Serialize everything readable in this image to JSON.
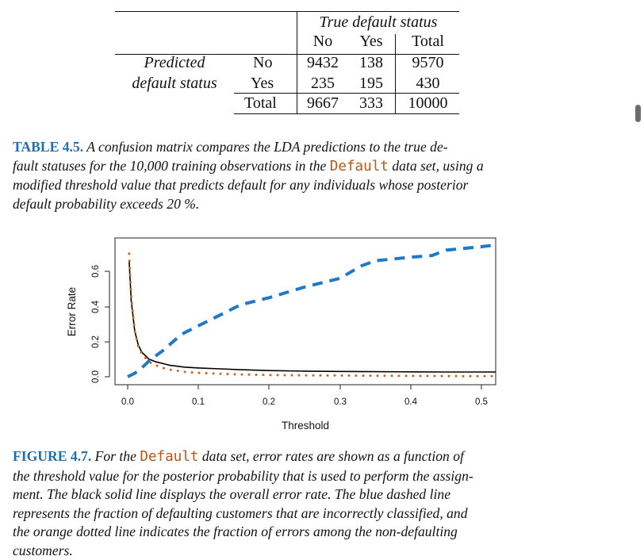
{
  "confusion_table": {
    "header_group": "True default status",
    "col_headers": [
      "No",
      "Yes",
      "Total"
    ],
    "row_group_line1": "Predicted",
    "row_group_line2": "default status",
    "rows": [
      {
        "label": "No",
        "values": [
          "9432",
          "138",
          "9570"
        ]
      },
      {
        "label": "Yes",
        "values": [
          "235",
          "195",
          "430"
        ]
      },
      {
        "label": "Total",
        "values": [
          "9667",
          "333",
          "10000"
        ]
      }
    ]
  },
  "table_caption": {
    "label": "TABLE 4.5.",
    "text_a": " A confusion matrix compares the LDA predictions to the true de-",
    "text_b": "fault statuses for the 10,000 training observations in the ",
    "code": "Default",
    "text_c": " data set, using a",
    "text_d": "modified threshold value that predicts default for any individuals whose posterior",
    "text_e": "default probability exceeds 20 %."
  },
  "chart_data": {
    "type": "line",
    "xlabel": "Threshold",
    "ylabel": "Error Rate",
    "xlim": [
      0,
      0.5
    ],
    "ylim": [
      0,
      0.7
    ],
    "x_ticks": [
      "0.0",
      "0.1",
      "0.2",
      "0.3",
      "0.4",
      "0.5"
    ],
    "y_ticks": [
      "0.0",
      "0.2",
      "0.4",
      "0.6"
    ],
    "grid": false,
    "series": [
      {
        "style": "solid",
        "color": "#000000",
        "x": [
          0.002,
          0.005,
          0.01,
          0.015,
          0.02,
          0.03,
          0.04,
          0.05,
          0.06,
          0.08,
          0.1,
          0.13,
          0.16,
          0.2,
          0.25,
          0.3,
          0.35,
          0.4,
          0.45,
          0.5,
          0.52
        ],
        "y": [
          0.66,
          0.43,
          0.26,
          0.18,
          0.14,
          0.1,
          0.085,
          0.075,
          0.065,
          0.055,
          0.05,
          0.045,
          0.04,
          0.035,
          0.032,
          0.03,
          0.029,
          0.028,
          0.027,
          0.027,
          0.027
        ]
      },
      {
        "style": "dashed",
        "color": "#1f78c8",
        "x": [
          0.0,
          0.01,
          0.02,
          0.03,
          0.05,
          0.07,
          0.08,
          0.1,
          0.13,
          0.16,
          0.2,
          0.25,
          0.3,
          0.33,
          0.35,
          0.4,
          0.43,
          0.45,
          0.5,
          0.52
        ],
        "y": [
          0.0,
          0.02,
          0.05,
          0.09,
          0.15,
          0.22,
          0.25,
          0.29,
          0.35,
          0.41,
          0.45,
          0.51,
          0.56,
          0.63,
          0.66,
          0.68,
          0.69,
          0.72,
          0.74,
          0.75
        ]
      },
      {
        "style": "dotted",
        "color": "#c8691d",
        "x": [
          0.002,
          0.005,
          0.01,
          0.015,
          0.02,
          0.03,
          0.04,
          0.05,
          0.06,
          0.08,
          0.1,
          0.13,
          0.16,
          0.2,
          0.25,
          0.3,
          0.35,
          0.4,
          0.45,
          0.5,
          0.52
        ],
        "y": [
          0.7,
          0.45,
          0.26,
          0.17,
          0.13,
          0.085,
          0.065,
          0.05,
          0.04,
          0.028,
          0.022,
          0.017,
          0.013,
          0.01,
          0.008,
          0.007,
          0.006,
          0.005,
          0.004,
          0.003,
          0.003
        ]
      }
    ]
  },
  "figure_caption": {
    "label": "FIGURE 4.7.",
    "text_a": " For the ",
    "code": "Default",
    "text_b": " data set, error rates are shown as a function of",
    "line2": "the threshold value for the posterior probability that is used to perform the assign-",
    "line3": "ment. The black solid line displays the overall error rate. The blue dashed line",
    "line4": "represents the fraction of defaulting customers that are incorrectly classified, and",
    "line5": "the orange dotted line indicates the fraction of errors among the non-defaulting",
    "line6": "customers."
  }
}
